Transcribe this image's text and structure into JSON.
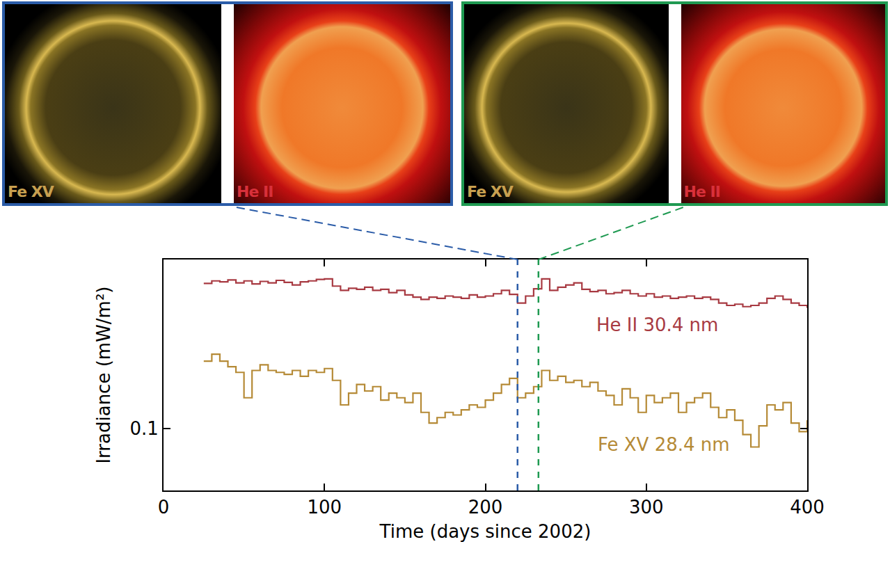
{
  "chart_data": {
    "type": "line",
    "x_label": "Time (days since 2002)",
    "y_label": "Irradiance (mW/m²)",
    "log": "y",
    "grid": false,
    "xlim": [
      0,
      400
    ],
    "xticks": [
      0,
      100,
      200,
      300,
      400
    ],
    "ylim": [
      0.065,
      0.325
    ],
    "yticks": [
      0.1
    ],
    "x": [
      25,
      30,
      35,
      40,
      45,
      50,
      55,
      60,
      65,
      70,
      75,
      80,
      85,
      90,
      95,
      100,
      105,
      110,
      115,
      120,
      125,
      130,
      135,
      140,
      145,
      150,
      155,
      160,
      165,
      170,
      175,
      180,
      185,
      190,
      195,
      200,
      205,
      210,
      215,
      220,
      225,
      230,
      235,
      240,
      245,
      250,
      255,
      260,
      265,
      270,
      275,
      280,
      285,
      290,
      295,
      300,
      305,
      310,
      315,
      320,
      325,
      330,
      335,
      340,
      345,
      350,
      355,
      360,
      365,
      370,
      375,
      380,
      385,
      390,
      395,
      400
    ],
    "series": [
      {
        "name": "He II 30.4 nm",
        "color": "#a83a42",
        "line_style": "steps",
        "values": [
          0.275,
          0.28,
          0.278,
          0.282,
          0.276,
          0.28,
          0.274,
          0.279,
          0.276,
          0.281,
          0.277,
          0.272,
          0.278,
          0.28,
          0.283,
          0.284,
          0.27,
          0.262,
          0.266,
          0.264,
          0.268,
          0.262,
          0.264,
          0.258,
          0.262,
          0.254,
          0.25,
          0.246,
          0.25,
          0.248,
          0.252,
          0.25,
          0.248,
          0.254,
          0.25,
          0.252,
          0.256,
          0.262,
          0.255,
          0.24,
          0.252,
          0.265,
          0.284,
          0.262,
          0.268,
          0.272,
          0.276,
          0.264,
          0.26,
          0.262,
          0.256,
          0.258,
          0.262,
          0.256,
          0.252,
          0.256,
          0.25,
          0.252,
          0.248,
          0.25,
          0.252,
          0.248,
          0.25,
          0.246,
          0.24,
          0.236,
          0.238,
          0.234,
          0.236,
          0.24,
          0.248,
          0.252,
          0.246,
          0.24,
          0.236,
          0.232
        ]
      },
      {
        "name": "Fe XV 28.4 nm",
        "color": "#b58a36",
        "line_style": "steps",
        "values": [
          0.16,
          0.168,
          0.16,
          0.154,
          0.148,
          0.124,
          0.15,
          0.156,
          0.15,
          0.148,
          0.146,
          0.15,
          0.144,
          0.15,
          0.148,
          0.152,
          0.14,
          0.118,
          0.128,
          0.136,
          0.13,
          0.134,
          0.122,
          0.128,
          0.124,
          0.12,
          0.128,
          0.112,
          0.104,
          0.108,
          0.112,
          0.11,
          0.114,
          0.118,
          0.116,
          0.122,
          0.128,
          0.136,
          0.142,
          0.124,
          0.128,
          0.134,
          0.15,
          0.14,
          0.144,
          0.138,
          0.14,
          0.134,
          0.138,
          0.13,
          0.126,
          0.118,
          0.132,
          0.124,
          0.112,
          0.126,
          0.12,
          0.124,
          0.128,
          0.112,
          0.12,
          0.124,
          0.128,
          0.116,
          0.108,
          0.114,
          0.106,
          0.096,
          0.088,
          0.102,
          0.118,
          0.114,
          0.12,
          0.104,
          0.098,
          0.106
        ]
      }
    ],
    "annotations": [
      {
        "text": "He II 30.4 nm",
        "x": 307,
        "y": 0.206,
        "color": "#a83a42"
      },
      {
        "text": "Fe XV 28.4 nm",
        "x": 311,
        "y": 0.0894,
        "color": "#b58a36"
      }
    ],
    "vlines": [
      {
        "x": 220,
        "color": "#2b5ca8",
        "line_style": "dash"
      },
      {
        "x": 233,
        "color": "#1f9a52",
        "line_style": "dash"
      }
    ]
  },
  "panels": [
    {
      "frame_color": "#2b5ca8",
      "images": [
        {
          "label": "Fe XV",
          "color": "#c8a050"
        },
        {
          "label": "He II",
          "color": "#d8303a"
        }
      ]
    },
    {
      "frame_color": "#1f9a52",
      "images": [
        {
          "label": "Fe XV",
          "color": "#c8a050"
        },
        {
          "label": "He II",
          "color": "#d8303a"
        }
      ]
    }
  ]
}
